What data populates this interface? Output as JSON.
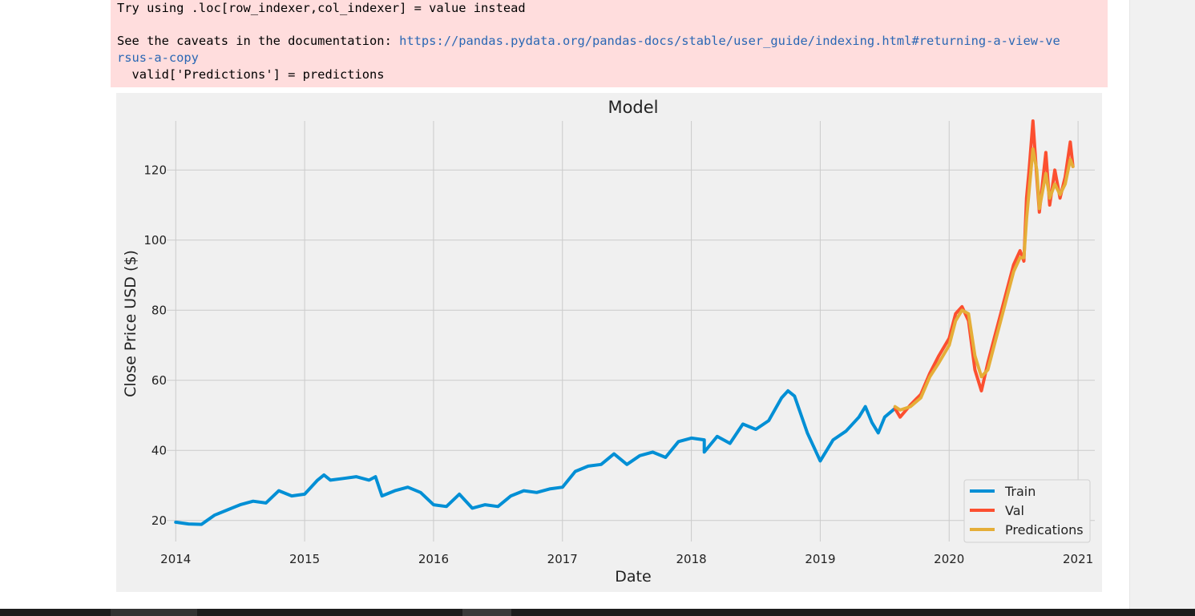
{
  "output": {
    "warning_line1": "Try using .loc[row_indexer,col_indexer] = value instead",
    "caveats_prefix": "See the caveats in the documentation: ",
    "caveats_url_line1": "https://pandas.pydata.org/pandas-docs/stable/user_guide/indexing.html#returning-a-view-ve",
    "caveats_url_line2": "rsus-a-copy",
    "code_line": "  valid['Predictions'] = predictions"
  },
  "colors": {
    "train": "#008fd5",
    "val": "#fc4f30",
    "predictions": "#e5ae38",
    "stderr_bg": "#ffdddd",
    "link": "#2a67b4"
  },
  "chart_data": {
    "type": "line",
    "title": "Model",
    "xlabel": "Date",
    "ylabel": "Close Price USD ($)",
    "xlim": [
      2013.93,
      2021.13
    ],
    "ylim": [
      14,
      134
    ],
    "x_ticks": [
      "2014",
      "2015",
      "2016",
      "2017",
      "2018",
      "2019",
      "2020",
      "2021"
    ],
    "y_ticks": [
      20,
      40,
      60,
      80,
      100,
      120
    ],
    "grid": true,
    "legend_position": "bottom-right",
    "series": [
      {
        "name": "Train",
        "x": [
          2014.0,
          2014.1,
          2014.2,
          2014.3,
          2014.4,
          2014.5,
          2014.6,
          2014.7,
          2014.8,
          2014.9,
          2015.0,
          2015.1,
          2015.15,
          2015.2,
          2015.3,
          2015.4,
          2015.5,
          2015.55,
          2015.6,
          2015.7,
          2015.8,
          2015.9,
          2016.0,
          2016.1,
          2016.2,
          2016.3,
          2016.4,
          2016.5,
          2016.6,
          2016.7,
          2016.8,
          2016.9,
          2017.0,
          2017.1,
          2017.2,
          2017.3,
          2017.4,
          2017.5,
          2017.6,
          2017.7,
          2017.8,
          2017.9,
          2018.0,
          2018.1,
          2018.1,
          2018.2,
          2018.3,
          2018.4,
          2018.5,
          2018.6,
          2018.7,
          2018.75,
          2018.8,
          2018.9,
          2019.0,
          2019.1,
          2019.2,
          2019.3,
          2019.35,
          2019.4,
          2019.45,
          2019.5,
          2019.58
        ],
        "values": [
          19.5,
          19.0,
          18.9,
          21.5,
          23.0,
          24.5,
          25.5,
          25.0,
          28.5,
          27.0,
          27.5,
          31.5,
          33.0,
          31.5,
          32.0,
          32.5,
          31.5,
          32.5,
          27.0,
          28.5,
          29.5,
          28.0,
          24.5,
          24.0,
          27.5,
          23.5,
          24.5,
          24.0,
          27.0,
          28.5,
          28.0,
          29.0,
          29.5,
          34.0,
          35.5,
          36.0,
          39.0,
          36.0,
          38.5,
          39.5,
          38.0,
          42.5,
          43.5,
          43.0,
          39.5,
          44.0,
          42.0,
          47.5,
          46.0,
          48.5,
          55.0,
          57.0,
          55.5,
          45.0,
          37.0,
          43.0,
          45.5,
          49.5,
          52.5,
          48.0,
          45.0,
          49.5,
          52.0
        ]
      },
      {
        "name": "Val",
        "x": [
          2019.58,
          2019.62,
          2019.7,
          2019.78,
          2019.85,
          2019.92,
          2020.0,
          2020.05,
          2020.1,
          2020.15,
          2020.2,
          2020.25,
          2020.3,
          2020.35,
          2020.4,
          2020.45,
          2020.5,
          2020.55,
          2020.58,
          2020.6,
          2020.62,
          2020.65,
          2020.68,
          2020.7,
          2020.75,
          2020.78,
          2020.82,
          2020.86,
          2020.9,
          2020.94,
          2020.96
        ],
        "values": [
          52.0,
          49.5,
          53.0,
          56.0,
          62.0,
          67.0,
          72.0,
          79.0,
          81.0,
          77.0,
          63.0,
          57.0,
          65.0,
          72.0,
          79.0,
          86.0,
          93.0,
          97.0,
          94.0,
          112.0,
          120.0,
          134.0,
          118.0,
          108.0,
          125.0,
          110.0,
          120.0,
          112.0,
          118.0,
          128.0,
          121.0
        ]
      },
      {
        "name": "Predications",
        "x": [
          2019.58,
          2019.62,
          2019.7,
          2019.78,
          2019.85,
          2019.92,
          2020.0,
          2020.05,
          2020.1,
          2020.15,
          2020.2,
          2020.25,
          2020.3,
          2020.35,
          2020.4,
          2020.45,
          2020.5,
          2020.55,
          2020.58,
          2020.6,
          2020.62,
          2020.65,
          2020.68,
          2020.7,
          2020.75,
          2020.78,
          2020.82,
          2020.86,
          2020.9,
          2020.94,
          2020.96
        ],
        "values": [
          52.5,
          51.5,
          52.5,
          55.0,
          61.0,
          65.0,
          70.0,
          77.0,
          80.0,
          79.0,
          67.0,
          61.0,
          63.0,
          70.0,
          77.0,
          84.0,
          91.0,
          95.0,
          95.0,
          106.0,
          114.0,
          126.0,
          120.0,
          109.0,
          119.0,
          112.0,
          116.0,
          113.0,
          116.0,
          123.0,
          121.0
        ]
      }
    ]
  }
}
